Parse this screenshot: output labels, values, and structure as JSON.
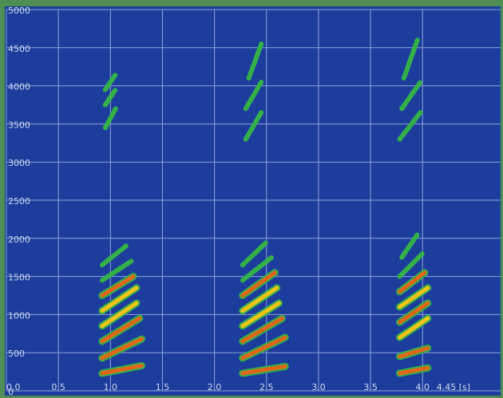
{
  "chart_data": {
    "type": "spectrogram",
    "xlim": [
      0,
      4.75
    ],
    "ylim": [
      0,
      5000
    ],
    "xticks": [
      {
        "value": 0,
        "label": "0.0"
      },
      0.5,
      {
        "value": 1,
        "label": "1.0"
      },
      1.5,
      {
        "value": 2,
        "label": "2.0"
      },
      2.5,
      {
        "value": 3,
        "label": "3.0"
      },
      3.5,
      {
        "value": 4,
        "label": "4.0"
      },
      {
        "value": 4.45,
        "label": "4.45 [s]"
      }
    ],
    "yticks": [
      0,
      500,
      1000,
      1500,
      2000,
      2500,
      3000,
      3500,
      4000,
      4500,
      5000
    ],
    "grid": true,
    "background": "#1c3d9c",
    "grid_color": "#8fa3d8",
    "colors": [
      "#34b04a",
      "#f2c21c",
      "#e0661c"
    ],
    "strokes": [
      {
        "t": [
          0.92,
          1.3
        ],
        "f": [
          230,
          330
        ],
        "level": 2
      },
      {
        "t": [
          0.92,
          1.3
        ],
        "f": [
          430,
          680
        ],
        "level": 2
      },
      {
        "t": [
          0.92,
          1.28
        ],
        "f": [
          650,
          950
        ],
        "level": 2
      },
      {
        "t": [
          0.92,
          1.25
        ],
        "f": [
          850,
          1150
        ],
        "level": 1
      },
      {
        "t": [
          0.92,
          1.25
        ],
        "f": [
          1050,
          1350
        ],
        "level": 1
      },
      {
        "t": [
          0.92,
          1.22
        ],
        "f": [
          1250,
          1500
        ],
        "level": 2
      },
      {
        "t": [
          0.92,
          1.2
        ],
        "f": [
          1450,
          1700
        ],
        "level": 0
      },
      {
        "t": [
          0.92,
          1.15
        ],
        "f": [
          1650,
          1900
        ],
        "level": 0
      },
      {
        "t": [
          0.95,
          1.05
        ],
        "f": [
          3450,
          3700
        ],
        "level": 0
      },
      {
        "t": [
          0.95,
          1.05
        ],
        "f": [
          3750,
          3950
        ],
        "level": 0
      },
      {
        "t": [
          0.95,
          1.05
        ],
        "f": [
          3950,
          4150
        ],
        "level": 0
      },
      {
        "t": [
          2.27,
          2.68
        ],
        "f": [
          230,
          320
        ],
        "level": 2
      },
      {
        "t": [
          2.27,
          2.68
        ],
        "f": [
          430,
          700
        ],
        "level": 2
      },
      {
        "t": [
          2.27,
          2.65
        ],
        "f": [
          650,
          950
        ],
        "level": 2
      },
      {
        "t": [
          2.27,
          2.62
        ],
        "f": [
          850,
          1150
        ],
        "level": 1
      },
      {
        "t": [
          2.27,
          2.6
        ],
        "f": [
          1050,
          1350
        ],
        "level": 1
      },
      {
        "t": [
          2.27,
          2.58
        ],
        "f": [
          1250,
          1550
        ],
        "level": 2
      },
      {
        "t": [
          2.27,
          2.55
        ],
        "f": [
          1450,
          1750
        ],
        "level": 0
      },
      {
        "t": [
          2.27,
          2.5
        ],
        "f": [
          1650,
          1950
        ],
        "level": 0
      },
      {
        "t": [
          2.3,
          2.45
        ],
        "f": [
          3300,
          3650
        ],
        "level": 0
      },
      {
        "t": [
          2.3,
          2.45
        ],
        "f": [
          3700,
          4050
        ],
        "level": 0
      },
      {
        "t": [
          2.33,
          2.45
        ],
        "f": [
          4100,
          4550
        ],
        "level": 0
      },
      {
        "t": [
          3.78,
          4.05
        ],
        "f": [
          230,
          300
        ],
        "level": 2
      },
      {
        "t": [
          3.78,
          4.05
        ],
        "f": [
          450,
          560
        ],
        "level": 2
      },
      {
        "t": [
          3.78,
          4.05
        ],
        "f": [
          700,
          950
        ],
        "level": 1
      },
      {
        "t": [
          3.78,
          4.05
        ],
        "f": [
          900,
          1150
        ],
        "level": 2
      },
      {
        "t": [
          3.78,
          4.05
        ],
        "f": [
          1100,
          1350
        ],
        "level": 1
      },
      {
        "t": [
          3.78,
          4.02
        ],
        "f": [
          1300,
          1550
        ],
        "level": 2
      },
      {
        "t": [
          3.78,
          4.0
        ],
        "f": [
          1500,
          1800
        ],
        "level": 0
      },
      {
        "t": [
          3.8,
          3.95
        ],
        "f": [
          1750,
          2050
        ],
        "level": 0
      },
      {
        "t": [
          3.78,
          3.98
        ],
        "f": [
          3300,
          3650
        ],
        "level": 0
      },
      {
        "t": [
          3.8,
          3.98
        ],
        "f": [
          3700,
          4050
        ],
        "level": 0
      },
      {
        "t": [
          3.82,
          3.95
        ],
        "f": [
          4100,
          4600
        ],
        "level": 0
      }
    ]
  }
}
